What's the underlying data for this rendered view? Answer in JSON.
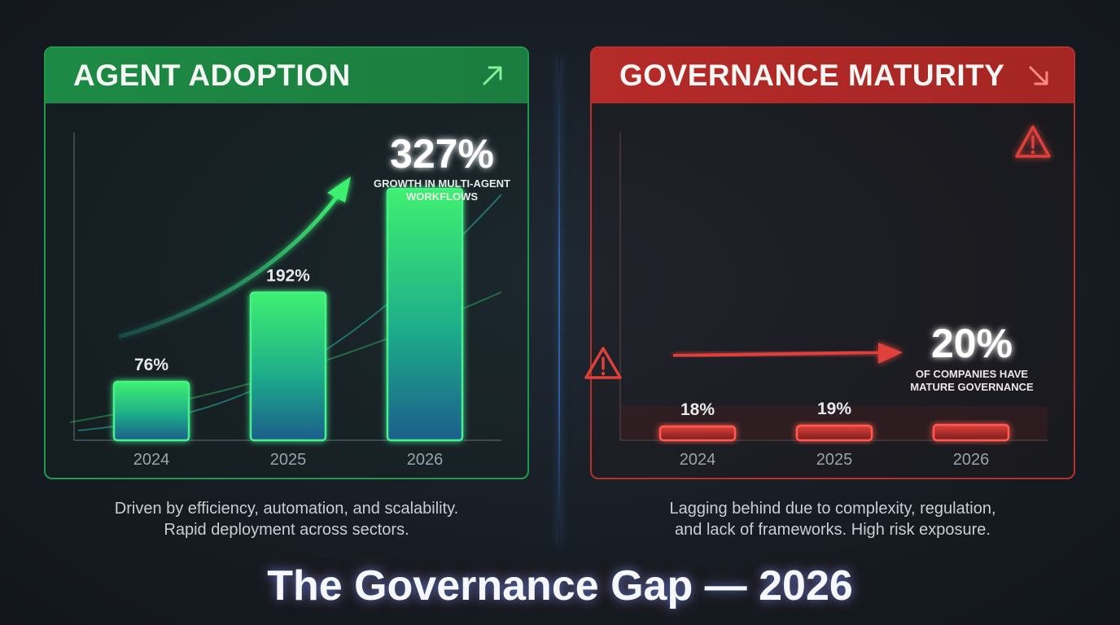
{
  "title": "The Governance Gap — 2026",
  "colors": {
    "green": "#2fe06a",
    "red": "#e0403a",
    "blue": "#3aa8ff"
  },
  "left_panel": {
    "title": "AGENT ADOPTION",
    "icon": "trend-up-arrow-icon",
    "headline_value": "327%",
    "headline_caption_1": "GROWTH IN MULTI-AGENT",
    "headline_caption_2": "WORKFLOWS",
    "caption_1": "Driven by efficiency, automation, and scalability.",
    "caption_2": "Rapid deployment across sectors."
  },
  "right_panel": {
    "title": "GOVERNANCE MATURITY",
    "icon": "trend-down-arrow-icon",
    "headline_value": "20%",
    "headline_caption_1": "OF COMPANIES HAVE",
    "headline_caption_2": "MATURE GOVERNANCE",
    "caption_1": "Lagging behind due to complexity, regulation,",
    "caption_2": "and lack of frameworks. High risk exposure."
  },
  "chart_data": [
    {
      "type": "bar",
      "title": "AGENT ADOPTION",
      "categories": [
        "2024",
        "2025",
        "2026"
      ],
      "values": [
        76,
        192,
        327
      ],
      "data_labels": [
        "76%",
        "192%",
        ""
      ],
      "ylim": [
        0,
        400
      ],
      "grid": false,
      "annotation": "327% GROWTH IN MULTI-AGENT WORKFLOWS"
    },
    {
      "type": "bar",
      "title": "GOVERNANCE MATURITY",
      "categories": [
        "2024",
        "2025",
        "2026"
      ],
      "values": [
        18,
        19,
        20
      ],
      "data_labels": [
        "18%",
        "19%",
        ""
      ],
      "ylim": [
        0,
        400
      ],
      "grid": false,
      "annotation": "20% OF COMPANIES HAVE MATURE GOVERNANCE"
    }
  ]
}
